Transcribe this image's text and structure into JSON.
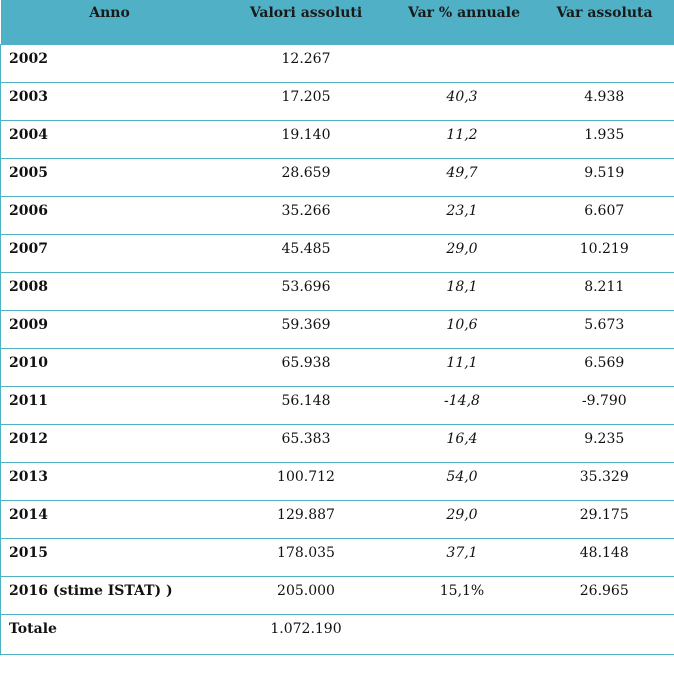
{
  "header": {
    "anno": "Anno",
    "valori": "Valori assoluti",
    "var_pct": "Var % annuale",
    "var_abs": "Var assoluta"
  },
  "rows": [
    {
      "anno": "2002",
      "valori": "12.267",
      "var_pct": "",
      "var_abs": ""
    },
    {
      "anno": "2003",
      "valori": "17.205",
      "var_pct": "40,3",
      "var_abs": "4.938"
    },
    {
      "anno": "2004",
      "valori": "19.140",
      "var_pct": "11,2",
      "var_abs": "1.935"
    },
    {
      "anno": "2005",
      "valori": "28.659",
      "var_pct": "49,7",
      "var_abs": "9.519"
    },
    {
      "anno": "2006",
      "valori": "35.266",
      "var_pct": "23,1",
      "var_abs": "6.607"
    },
    {
      "anno": "2007",
      "valori": "45.485",
      "var_pct": "29,0",
      "var_abs": "10.219"
    },
    {
      "anno": "2008",
      "valori": "53.696",
      "var_pct": "18,1",
      "var_abs": "8.211"
    },
    {
      "anno": "2009",
      "valori": "59.369",
      "var_pct": "10,6",
      "var_abs": "5.673"
    },
    {
      "anno": "2010",
      "valori": "65.938",
      "var_pct": "11,1",
      "var_abs": "6.569"
    },
    {
      "anno": "2011",
      "valori": "56.148",
      "var_pct": "-14,8",
      "var_abs": "-9.790"
    },
    {
      "anno": "2012",
      "valori": "65.383",
      "var_pct": "16,4",
      "var_abs": "9.235"
    },
    {
      "anno": "2013",
      "valori": "100.712",
      "var_pct": "54,0",
      "var_abs": "35.329"
    },
    {
      "anno": "2014",
      "valori": "129.887",
      "var_pct": "29,0",
      "var_abs": "29.175"
    },
    {
      "anno": "2015",
      "valori": "178.035",
      "var_pct": "37,1",
      "var_abs": "48.148"
    },
    {
      "anno": "2016 (stime ISTAT) )",
      "valori": "205.000",
      "var_pct": "15,1%",
      "var_abs": "26.965"
    },
    {
      "anno": "Totale",
      "valori": "1.072.190",
      "var_pct": "",
      "var_abs": ""
    }
  ],
  "colors": {
    "header_bg": "#4fb0c6",
    "border": "#4fb0c6"
  }
}
